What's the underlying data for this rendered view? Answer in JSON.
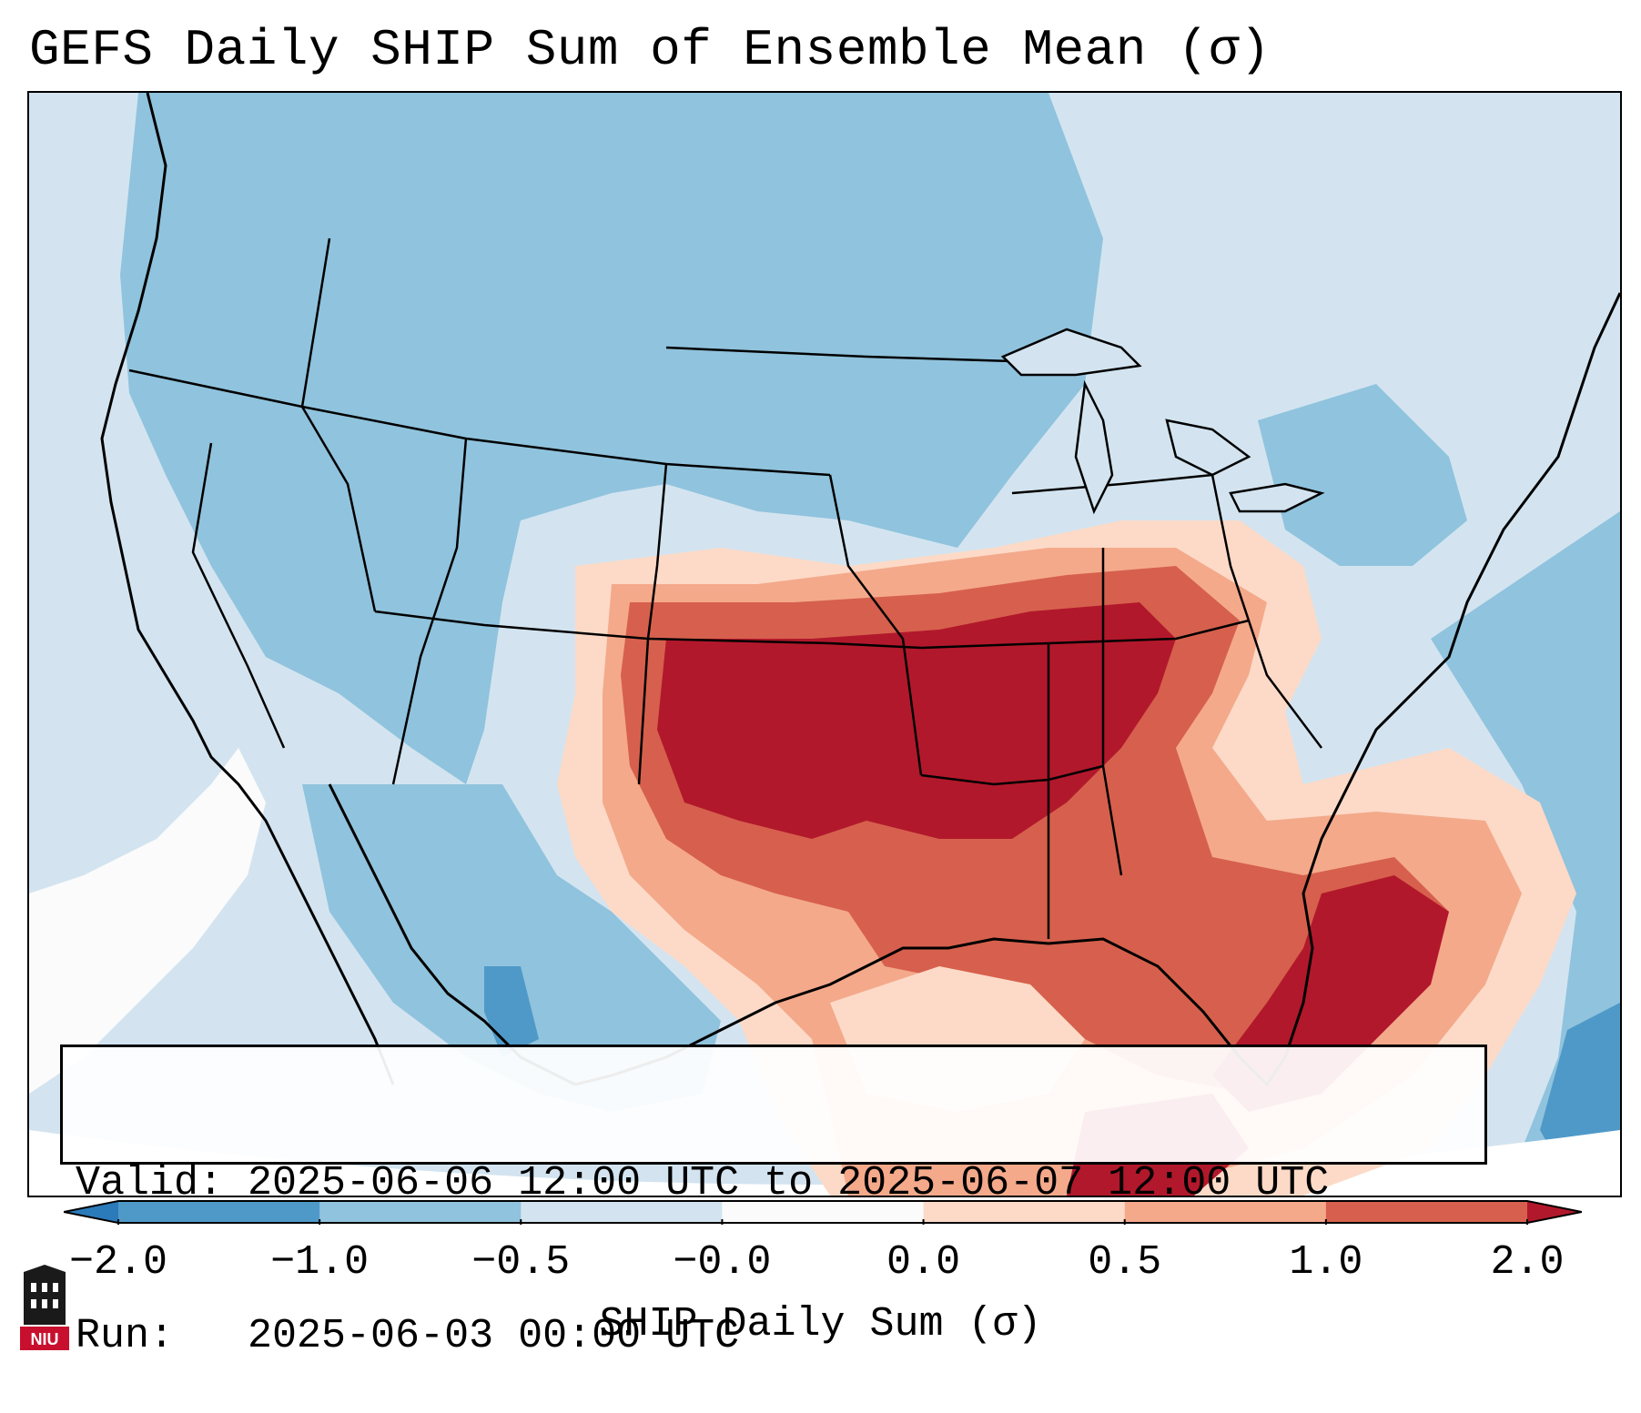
{
  "title": "GEFS Daily SHIP Sum of Ensemble Mean (σ)",
  "info": {
    "valid_line": "Valid: 2025-06-06 12:00 UTC to 2025-06-07 12:00 UTC",
    "run_line": "Run:   2025-06-03 00:00 UTC"
  },
  "colorbar": {
    "label": "SHIP Daily Sum (σ)",
    "tick_labels": [
      "−2.0",
      "−1.0",
      "−0.5",
      "−0.0",
      "0.0",
      "0.5",
      "1.0",
      "2.0"
    ],
    "bin_colors": [
      "#2b7bba",
      "#4f99c8",
      "#90c3dd",
      "#d3e4f0",
      "#fbfbfb",
      "#fcdac7",
      "#f4a98b",
      "#d6604d",
      "#b2182b"
    ],
    "extend": "both"
  },
  "map": {
    "projection": "Lambert Conformal",
    "region": "CONUS",
    "colors": {
      "ocean_background": "#d3e4f0",
      "outside_domain": "#ffffff",
      "border": "#000000"
    },
    "anomaly_regions": [
      {
        "name": "southern-plains-mid-south",
        "category": "above 2.0",
        "color": "#b2182b"
      },
      {
        "name": "ohio-valley-to-southeast",
        "category": "1.0 to 2.0",
        "color": "#d6604d"
      },
      {
        "name": "gulf-of-mexico",
        "category": "0.5 to 1.0",
        "color": "#f4a98b"
      },
      {
        "name": "florida-atlantic",
        "category": "1.0 to above 2.0",
        "color": "#b2182b"
      },
      {
        "name": "northern-rockies-plains",
        "category": "-1.0 to -0.5",
        "color": "#90c3dd"
      },
      {
        "name": "pacific-offshore",
        "category": "near 0",
        "color": "#fbfbfb"
      }
    ]
  },
  "logo": {
    "text": "NIU",
    "description": "NIU institutional logo"
  }
}
